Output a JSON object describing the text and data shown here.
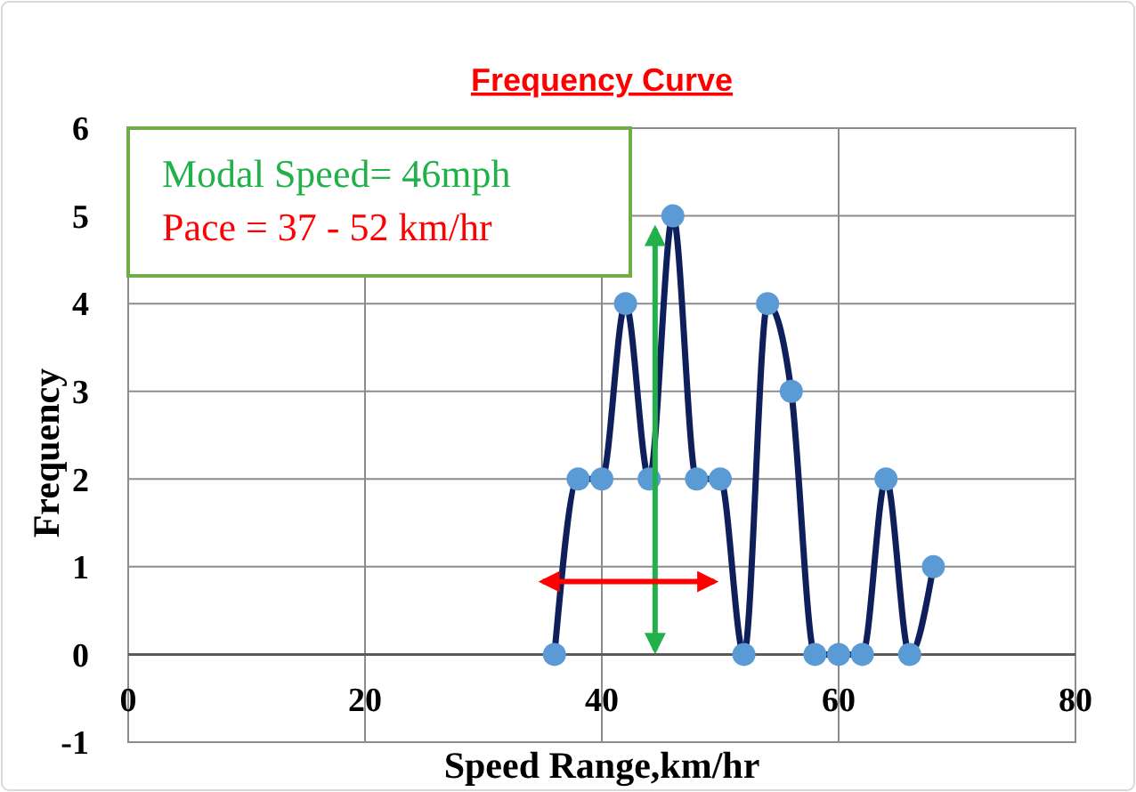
{
  "chart_data": {
    "type": "line",
    "title": "Frequency Curve",
    "xlabel": "Speed Range,km/hr",
    "ylabel": "Frequency",
    "x": [
      36,
      38,
      40,
      42,
      44,
      46,
      48,
      50,
      52,
      54,
      56,
      58,
      60,
      62,
      64,
      66,
      68
    ],
    "series": [
      {
        "color": "#0f1f5c",
        "values": [
          0,
          2,
          2,
          4,
          2,
          5,
          2,
          2,
          0,
          4,
          3,
          0,
          0,
          0,
          2,
          0,
          1
        ]
      }
    ],
    "marker": "circle",
    "xlim": [
      0,
      80
    ],
    "xticks": [
      0,
      20,
      40,
      60,
      80
    ],
    "ylim": [
      -1,
      6
    ],
    "yticks": [
      -1,
      0,
      1,
      2,
      3,
      4,
      5,
      6
    ],
    "grid": true,
    "annotations": [
      "Modal Speed= 46mph",
      "Pace = 37 - 52 km/hr"
    ]
  }
}
